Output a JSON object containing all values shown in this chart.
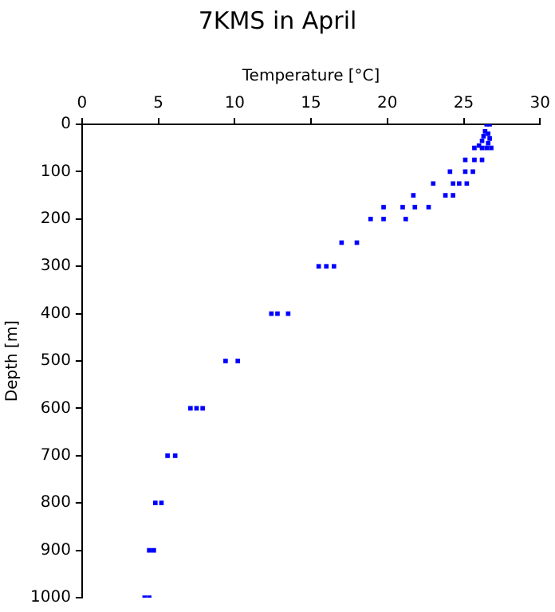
{
  "chart_data": {
    "type": "scatter",
    "title": "7KMS in April",
    "xlabel": "Temperature [°C]",
    "ylabel": "Depth [m]",
    "xlim": [
      0,
      30
    ],
    "xticks": [
      0,
      5,
      10,
      15,
      20,
      25,
      30
    ],
    "ylim": [
      1000,
      0
    ],
    "yticks": [
      0,
      100,
      200,
      300,
      400,
      500,
      600,
      700,
      800,
      900,
      1000
    ],
    "grid": false,
    "legend": false,
    "marker": "square",
    "series": [
      {
        "color": "#0000ff",
        "x": [
          26.5,
          26.7,
          26.4,
          26.6,
          26.3,
          26.7,
          26.2,
          26.6,
          26.0,
          26.5,
          25.7,
          26.2,
          26.8,
          25.1,
          25.7,
          26.2,
          24.1,
          25.1,
          25.6,
          23.0,
          24.3,
          24.7,
          25.2,
          21.7,
          23.8,
          24.3,
          19.75,
          21.0,
          21.8,
          22.7,
          18.9,
          19.75,
          21.2,
          17.0,
          18.0,
          15.5,
          16.0,
          16.5,
          12.4,
          12.8,
          13.5,
          9.4,
          10.2,
          7.1,
          7.5,
          7.9,
          5.6,
          6.1,
          4.8,
          5.2,
          4.4,
          4.7,
          4.1,
          4.4
        ],
        "values": [
          0,
          0,
          15,
          20,
          25,
          30,
          35,
          40,
          45,
          50,
          50,
          50,
          50,
          75,
          75,
          75,
          100,
          100,
          100,
          125,
          125,
          125,
          125,
          150,
          150,
          150,
          175,
          175,
          175,
          175,
          200,
          200,
          200,
          250,
          250,
          300,
          300,
          300,
          400,
          400,
          400,
          500,
          500,
          600,
          600,
          600,
          700,
          700,
          800,
          800,
          900,
          900,
          1000,
          1000
        ]
      }
    ]
  }
}
